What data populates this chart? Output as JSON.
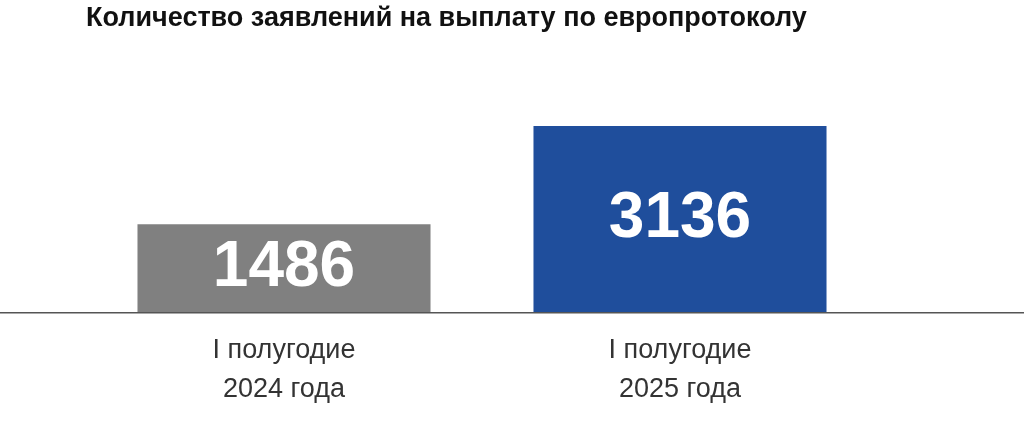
{
  "chart_data": {
    "type": "bar",
    "title": "Количество заявлений на выплату по европротоколу",
    "categories": [
      "I полугодие 2024 года",
      "I полугодие 2025 года"
    ],
    "values": [
      1486,
      3136
    ],
    "colors": [
      "#808080",
      "#1f4e9c"
    ],
    "data_labels": true,
    "grid": false,
    "legend": false
  }
}
